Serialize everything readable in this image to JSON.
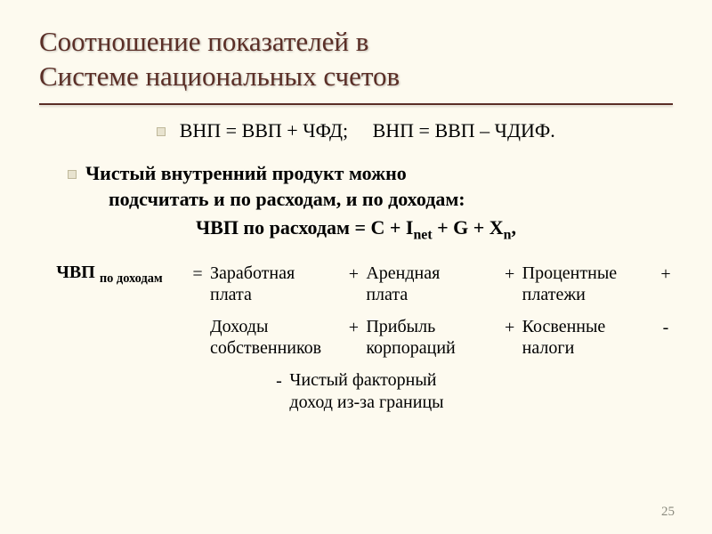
{
  "title_line1": "Соотношение показателей в",
  "title_line2": "Системе национальных счетов",
  "top_formula_a": "ВНП = ВВП + ЧФД;",
  "top_formula_b": "ВНП = ВВП – ЧДИФ.",
  "intro_l1": "Чистый внутренний продукт можно",
  "intro_l2": "подсчитать и по расходам, и по доходам:",
  "mid_label": "ЧВП по расходам = C + I",
  "mid_sub": "net",
  "mid_tail_a": " + G + X",
  "mid_sub2": "n",
  "mid_tail_b": ",",
  "lhs_label": "ЧВП ",
  "lhs_sub": "по доходам",
  "eq": "=",
  "plus": "+",
  "minus": "-",
  "r1_t1_a": "Заработная",
  "r1_t1_b": "плата",
  "r1_t2_a": "Арендная",
  "r1_t2_b": "плата",
  "r1_t3_a": "Процентные",
  "r1_t3_b": "платежи",
  "r2_t1_a": "Доходы",
  "r2_t1_b": "собственников",
  "r2_t2_a": "Прибыль",
  "r2_t2_b": "корпораций",
  "r2_t3_a": "Косвенные",
  "r2_t3_b": "налоги",
  "r3_a": "Чистый факторный",
  "r3_b": "доход из-за границы",
  "page_number": "25",
  "colors": {
    "background": "#fdfaef",
    "title": "#5a2e26",
    "text": "#000000",
    "pagenum": "#8a8a7e",
    "bullet_fill": "#e8e3cf",
    "bullet_border": "#bfb89a"
  }
}
